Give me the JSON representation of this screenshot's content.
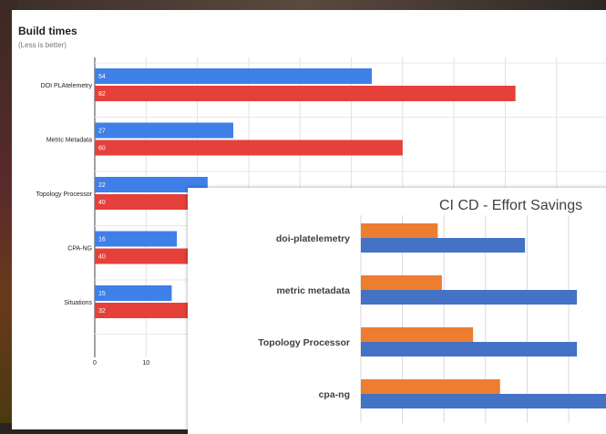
{
  "chart_data": [
    {
      "type": "bar",
      "orientation": "horizontal",
      "title": "Build times",
      "subtitle": "(Less is better)",
      "categories": [
        "DOI PLAtelemetry",
        "Metric Metadata",
        "Topology Processor",
        "CPA-NG",
        "Situations"
      ],
      "series": [
        {
          "values": [
            54,
            27,
            22,
            16,
            15
          ],
          "labels": [
            "54",
            "27",
            "22",
            "16",
            "15"
          ]
        },
        {
          "values": [
            82,
            60,
            40,
            40,
            32
          ],
          "labels": [
            "82",
            "60",
            "40",
            "40",
            "32"
          ]
        }
      ],
      "x_ticks": [
        "0",
        "10"
      ],
      "xlim": [
        0,
        100
      ],
      "grid": true
    },
    {
      "type": "bar",
      "orientation": "horizontal",
      "title": "CI CD - Effort Savings",
      "categories": [
        "doi-platelemetry",
        "metric metadata",
        "Topology Processor",
        "cpa-ng"
      ],
      "series": [
        {
          "values": [
            3.7,
            3.9,
            5.4,
            6.7
          ]
        },
        {
          "values": [
            7.9,
            10.4,
            10.4,
            12.0
          ]
        }
      ],
      "xlim": [
        0,
        12
      ],
      "grid": true
    }
  ],
  "colors": {
    "blue_chart1": "#3f7fe8",
    "red_chart1": "#e5403a",
    "orange_chart2": "#ed7d31",
    "blue_chart2": "#4472c4"
  }
}
